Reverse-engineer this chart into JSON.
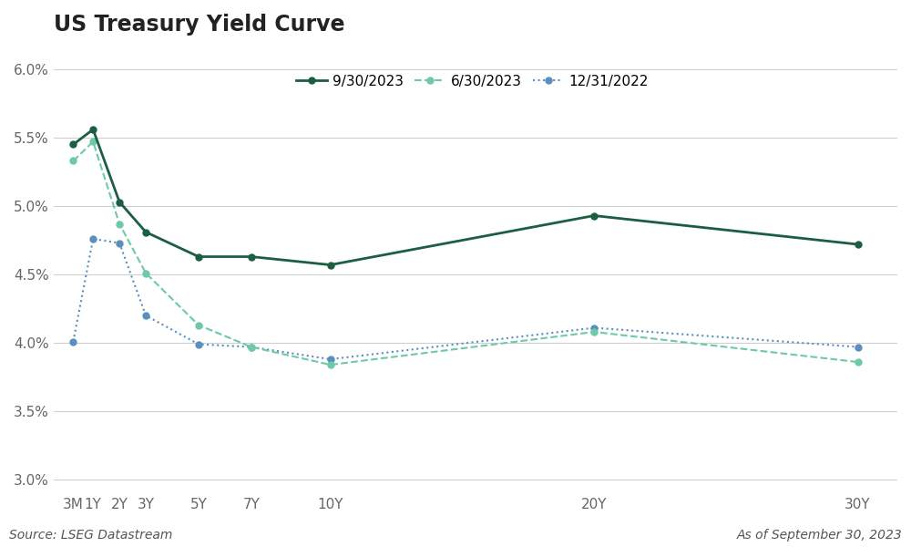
{
  "title": "US Treasury Yield Curve",
  "x_labels": [
    "3M",
    "1Y",
    "2Y",
    "3Y",
    "5Y",
    "7Y",
    "10Y",
    "20Y",
    "30Y"
  ],
  "x_positions": [
    0.25,
    1,
    2,
    3,
    5,
    7,
    10,
    20,
    30
  ],
  "x_gridlines": [
    1,
    2,
    3,
    5,
    7,
    10,
    20,
    30
  ],
  "series": [
    {
      "label": "9/30/2023",
      "values": [
        5.45,
        5.56,
        5.03,
        4.81,
        4.63,
        4.63,
        4.57,
        4.93,
        4.72
      ],
      "color": "#1b5e42",
      "linestyle": "-",
      "marker": "o",
      "linewidth": 2.0,
      "markersize": 5,
      "zorder": 3
    },
    {
      "label": "6/30/2023",
      "values": [
        5.33,
        5.47,
        4.87,
        4.51,
        4.13,
        3.97,
        3.84,
        4.08,
        3.86
      ],
      "color": "#6dc9a8",
      "linestyle": "--",
      "marker": "o",
      "linewidth": 1.5,
      "markersize": 5,
      "zorder": 2
    },
    {
      "label": "12/31/2022",
      "values": [
        4.01,
        4.76,
        4.73,
        4.2,
        3.99,
        3.97,
        3.88,
        4.11,
        3.97
      ],
      "color": "#5a8fbf",
      "linestyle": ":",
      "marker": "o",
      "linewidth": 1.5,
      "markersize": 5,
      "zorder": 1
    }
  ],
  "ylim": [
    2.9,
    6.15
  ],
  "yticks": [
    3.0,
    3.5,
    4.0,
    4.5,
    5.0,
    5.5,
    6.0
  ],
  "ytick_labels": [
    "3.0%",
    "3.5%",
    "4.0%",
    "4.5%",
    "5.0%",
    "5.5%",
    "6.0%"
  ],
  "xlim_left": -0.5,
  "xlim_right": 31.5,
  "source_text": "Source: LSEG Datastream",
  "date_text": "As of September 30, 2023",
  "background_color": "#ffffff",
  "grid_color": "#cccccc",
  "title_fontsize": 17,
  "tick_fontsize": 11,
  "legend_fontsize": 11
}
